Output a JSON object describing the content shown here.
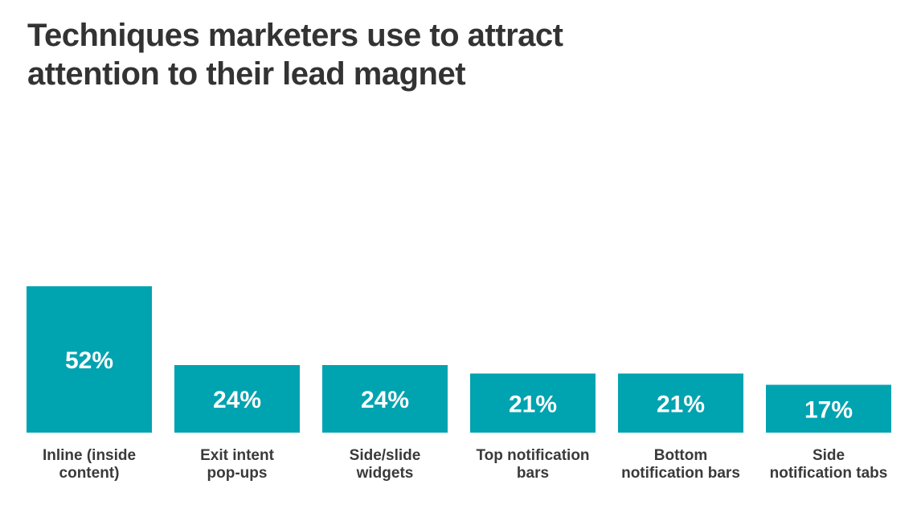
{
  "header": {
    "title_line1": "Techniques marketers use to attract",
    "title_line2": "attention to their lead magnet"
  },
  "colors": {
    "bar": "#00A3B0",
    "value_text": "#FFFFFF",
    "label_text": "#3A3A3A",
    "title_text": "#333333"
  },
  "chart_data": {
    "type": "bar",
    "title": "Techniques marketers use to attract attention to their lead magnet",
    "categories": [
      [
        "Inline (inside",
        "content)"
      ],
      [
        "Exit intent",
        "pop-ups"
      ],
      [
        "Side/slide",
        "widgets"
      ],
      [
        "Top notification",
        "bars"
      ],
      [
        "Bottom",
        "notification bars"
      ],
      [
        "Side",
        "notification tabs"
      ]
    ],
    "values": [
      52,
      24,
      24,
      21,
      21,
      17
    ],
    "value_labels": [
      "52%",
      "24%",
      "24%",
      "21%",
      "21%",
      "17%"
    ],
    "unit": "%",
    "xlabel": "",
    "ylabel": "",
    "ylim": [
      0,
      52
    ],
    "grid": false,
    "legend": "none"
  }
}
